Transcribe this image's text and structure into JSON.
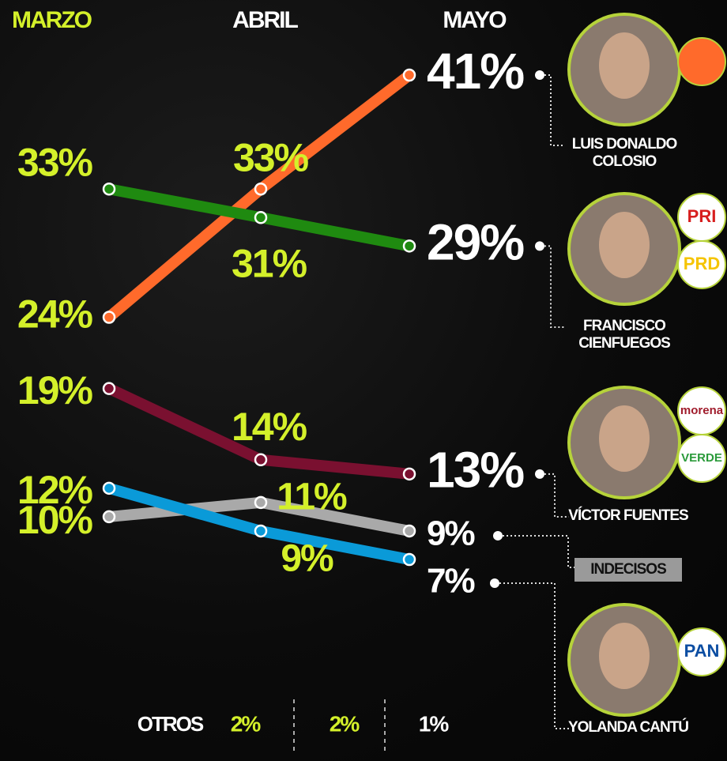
{
  "chart_data": {
    "type": "line",
    "categories": [
      "MARZO",
      "ABRIL",
      "MAYO"
    ],
    "series": [
      {
        "name": "LUIS DONALDO COLOSIO",
        "color": "#ff6a2b",
        "values": [
          24,
          33,
          41
        ],
        "value_labels": [
          "24%",
          "33%",
          "41%"
        ]
      },
      {
        "name": "FRANCISCO CIENFUEGOS",
        "color": "#1f8a10",
        "values": [
          33,
          31,
          29
        ],
        "value_labels": [
          "33%",
          "31%",
          "29%"
        ],
        "parties": [
          "PRI",
          "PRD"
        ]
      },
      {
        "name": "VÍCTOR FUENTES",
        "color": "#7a1030",
        "values": [
          19,
          14,
          13
        ],
        "value_labels": [
          "19%",
          "14%",
          "13%"
        ],
        "parties": [
          "morena",
          "VERDE"
        ]
      },
      {
        "name": "INDECISOS",
        "color": "#a9a9a9",
        "values": [
          10,
          11,
          9
        ],
        "value_labels": [
          "10%",
          "11%",
          "9%"
        ]
      },
      {
        "name": "YOLANDA CANTÚ",
        "color": "#0a9ad8",
        "values": [
          12,
          9,
          7
        ],
        "value_labels": [
          "12%",
          "9%",
          "7%"
        ],
        "parties": [
          "PAN"
        ]
      }
    ],
    "others": {
      "label": "OTROS",
      "values": [
        2,
        2,
        1
      ],
      "value_labels": [
        "2%",
        "2%",
        "1%"
      ]
    }
  }
}
